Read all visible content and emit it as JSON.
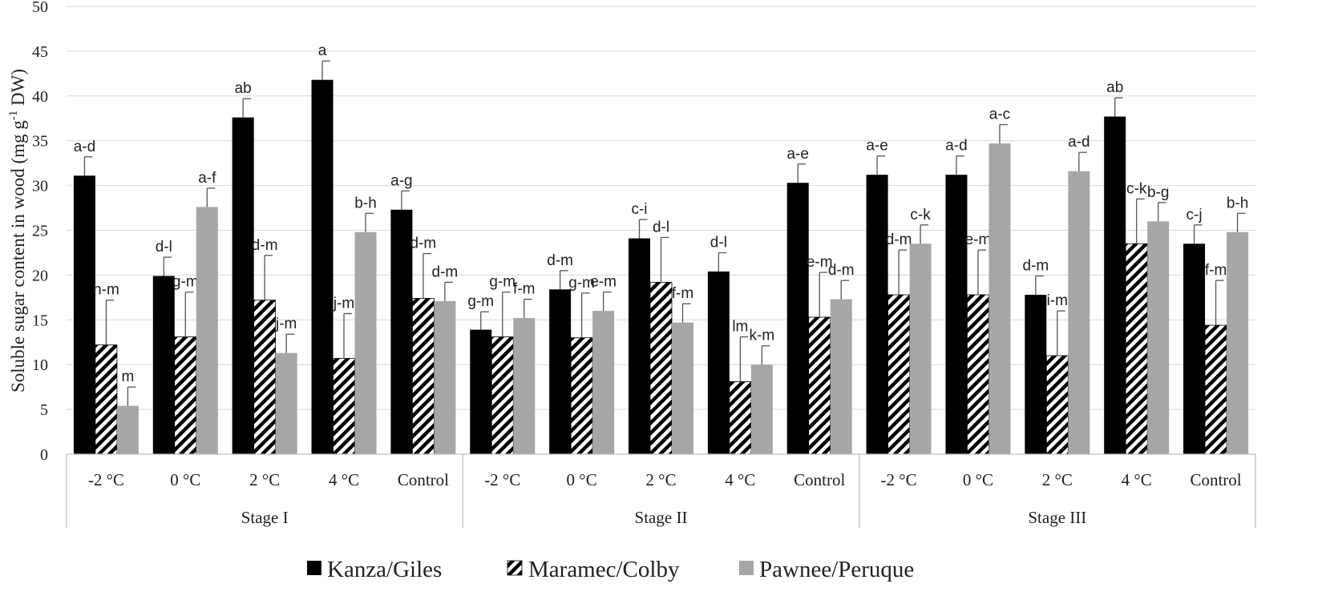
{
  "chart_data": {
    "type": "bar",
    "ylabel": "Soluble sugar content in wood (mg g-1 DW)",
    "ylabel_parts": [
      "Soluble sugar content in wood (mg g",
      "-1",
      " DW)"
    ],
    "ylim": [
      0,
      50
    ],
    "yticks": [
      0,
      5,
      10,
      15,
      20,
      25,
      30,
      35,
      40,
      45,
      50
    ],
    "grid": true,
    "legend_position": "bottom",
    "colors": {
      "Kanza/Giles": "#000000",
      "Maramec/Colby": "hatch",
      "Pawnee/Peruque": "#a6a6a6"
    },
    "stages": [
      "Stage I",
      "Stage II",
      "Stage III"
    ],
    "categories": [
      "-2 °C",
      "0 °C",
      "2 °C",
      "4 °C",
      "Control",
      "-2 °C",
      "0 °C",
      "2 °C",
      "4 °C",
      "Control",
      "-2 °C",
      "0 °C",
      "2 °C",
      "4 °C",
      "Control"
    ],
    "series": [
      {
        "name": "Kanza/Giles",
        "values": [
          31.1,
          19.9,
          37.6,
          41.8,
          27.3,
          13.9,
          18.4,
          24.1,
          20.4,
          30.3,
          31.2,
          31.2,
          17.8,
          37.7,
          23.5
        ],
        "errors": [
          2.1,
          2.1,
          2.1,
          2.1,
          2.1,
          2.0,
          2.1,
          2.1,
          2.1,
          2.1,
          2.1,
          2.1,
          2.1,
          2.1,
          2.1
        ],
        "letters": [
          "a-d",
          "d-l",
          "ab",
          "a",
          "a-g",
          "g-m",
          "d-m",
          "c-i",
          "d-l",
          "a-e",
          "a-e",
          "a-d",
          "d-m",
          "ab",
          "c-j"
        ]
      },
      {
        "name": "Maramec/Colby",
        "values": [
          12.2,
          13.1,
          17.2,
          10.7,
          17.4,
          13.1,
          13.0,
          19.2,
          8.1,
          15.3,
          17.8,
          17.8,
          11.0,
          23.5,
          14.4
        ],
        "errors": [
          5.0,
          5.0,
          5.0,
          5.0,
          5.0,
          5.0,
          5.0,
          5.0,
          5.0,
          5.0,
          5.0,
          5.0,
          5.0,
          5.0,
          5.0
        ],
        "letters": [
          "h-m",
          "g-m",
          "d-m",
          "j-m",
          "d-m",
          "g-m",
          "g-m",
          "d-l",
          "lm",
          "e-m",
          "d-m",
          "e-m",
          "i-m",
          "c-k",
          "f-m"
        ]
      },
      {
        "name": "Pawnee/Peruque",
        "values": [
          5.4,
          27.6,
          11.3,
          24.8,
          17.1,
          15.2,
          16.0,
          14.7,
          10.0,
          17.3,
          23.5,
          34.7,
          31.6,
          26.0,
          24.8
        ],
        "errors": [
          2.1,
          2.1,
          2.1,
          2.1,
          2.1,
          2.1,
          2.1,
          2.1,
          2.1,
          2.1,
          2.1,
          2.1,
          2.1,
          2.1,
          2.1
        ],
        "letters": [
          "m",
          "a-f",
          "j-m",
          "b-h",
          "d-m",
          "f-m",
          "e-m",
          "f-m",
          "k-m",
          "d-m",
          "c-k",
          "a-c",
          "a-d",
          "b-g",
          "b-h"
        ]
      }
    ]
  }
}
